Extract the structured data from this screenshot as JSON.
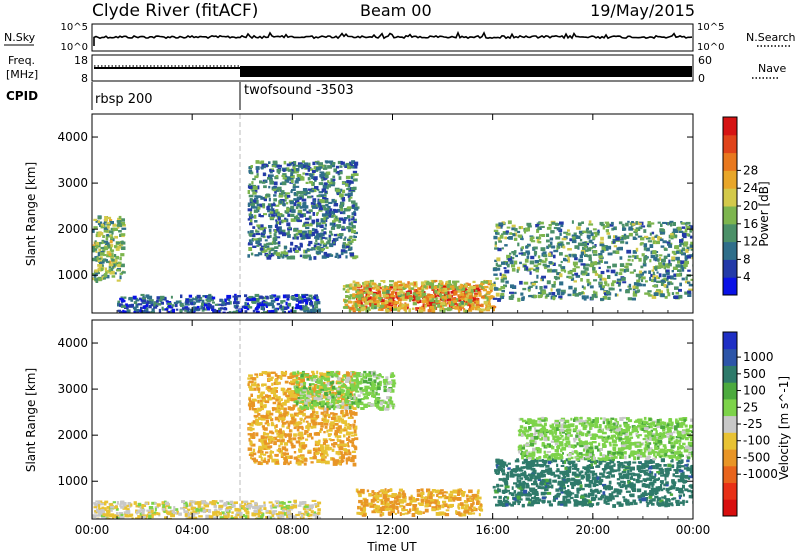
{
  "header": {
    "title": "Clyde River (fitACF)",
    "beam": "Beam 00",
    "date": "19/May/2015"
  },
  "top_panels": {
    "nsky_label": "N.Sky",
    "nsky_ticks": [
      "10^5",
      "10^0"
    ],
    "nsearch_label": "N.Search",
    "nsearch_ticks": [
      "10^5",
      "10^0"
    ],
    "freq_label": "Freq.",
    "freq_unit": "[MHz]",
    "freq_ticks": [
      "18",
      "8"
    ],
    "nave_label": "Nave",
    "nave_ticks": [
      "60",
      "0"
    ],
    "cpid_label": "CPID",
    "cpid_segments": [
      {
        "name": "rbsp 200",
        "start_hour": 0
      },
      {
        "name": "twofsound -3503",
        "start_hour": 6
      }
    ]
  },
  "chart_data": [
    {
      "type": "heatmap",
      "name": "power-panel",
      "ylabel": "Slant Range [km]",
      "xlabel": "Time UT",
      "x_ticks": [
        "00:00",
        "04:00",
        "08:00",
        "12:00",
        "16:00",
        "20:00",
        "00:00"
      ],
      "xlim": [
        0,
        24
      ],
      "y_ticks": [
        1000,
        2000,
        3000,
        4000
      ],
      "ylim": [
        180,
        4500
      ],
      "colorbar": {
        "label": "Power [dB]",
        "ticks": [
          4,
          8,
          12,
          16,
          20,
          24,
          28
        ],
        "colors": [
          "#0a12e6",
          "#233aa8",
          "#2f6e8a",
          "#4b9068",
          "#7db54e",
          "#d3c94a",
          "#e8a629",
          "#e8781e",
          "#e0431a",
          "#d61313"
        ]
      },
      "regions": [
        {
          "x": [
            10.5,
            15.5
          ],
          "y": [
            300,
            800
          ],
          "value": 27
        },
        {
          "x": [
            10.0,
            16.0
          ],
          "y": [
            250,
            900
          ],
          "value": 18
        },
        {
          "x": [
            6.2,
            10.5
          ],
          "y": [
            1400,
            3500
          ],
          "value": 10
        },
        {
          "x": [
            0.0,
            1.2
          ],
          "y": [
            900,
            2300
          ],
          "value": 14
        },
        {
          "x": [
            16.0,
            24.0
          ],
          "y": [
            500,
            2200
          ],
          "value": 12
        },
        {
          "x": [
            1.0,
            9.0
          ],
          "y": [
            200,
            600
          ],
          "value": 8
        }
      ]
    },
    {
      "type": "heatmap",
      "name": "velocity-panel",
      "ylabel": "Slant Range [km]",
      "xlabel": "Time UT",
      "x_ticks": [
        "00:00",
        "04:00",
        "08:00",
        "12:00",
        "16:00",
        "20:00",
        "00:00"
      ],
      "xlim": [
        0,
        24
      ],
      "y_ticks": [
        1000,
        2000,
        3000,
        4000
      ],
      "ylim": [
        180,
        4500
      ],
      "colorbar": {
        "label": "Velocity [m s^-1]",
        "ticks": [
          1000,
          500,
          100,
          25,
          -25,
          -100,
          -500,
          -1000
        ],
        "colors": [
          "#1f2fc4",
          "#2d55a8",
          "#2e7a6a",
          "#4caa3e",
          "#7dd34a",
          "#c8c8c8",
          "#e8c233",
          "#e89526",
          "#e8641c",
          "#e83016",
          "#d80e0e"
        ]
      },
      "regions": [
        {
          "x": [
            10.5,
            15.5
          ],
          "y": [
            300,
            850
          ],
          "value": -500
        },
        {
          "x": [
            6.2,
            10.5
          ],
          "y": [
            1400,
            3400
          ],
          "value": -500
        },
        {
          "x": [
            8.0,
            12.0
          ],
          "y": [
            2600,
            3400
          ],
          "value": 0
        },
        {
          "x": [
            16.0,
            24.0
          ],
          "y": [
            500,
            1500
          ],
          "value": 300
        },
        {
          "x": [
            17.0,
            24.0
          ],
          "y": [
            1500,
            2400
          ],
          "value": 0
        },
        {
          "x": [
            0.0,
            9.0
          ],
          "y": [
            200,
            600
          ],
          "value": -100
        }
      ]
    }
  ]
}
